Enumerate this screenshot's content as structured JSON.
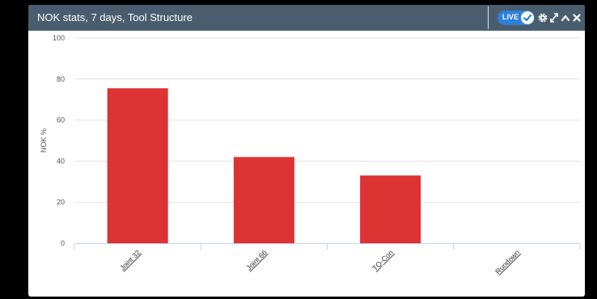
{
  "widget": {
    "title": "NOK stats, 7 days, Tool Structure",
    "live_label": "LIVE",
    "icons": [
      "check-icon",
      "gear-icon",
      "expand-icon",
      "chevron-up-icon",
      "close-icon"
    ]
  },
  "colors": {
    "header": "#4a5d6e",
    "bar": "#dd3333",
    "toggle": "#2f80d8"
  },
  "chart_data": {
    "type": "bar",
    "categories": [
      "Joint 32",
      "Joint 66",
      "TQ-Con",
      "Rundown"
    ],
    "values": [
      75.5,
      42,
      33,
      0
    ],
    "xlabel": "",
    "ylabel": "NOK %",
    "ylim": [
      0,
      100
    ],
    "yticks": [
      0,
      20,
      40,
      60,
      80,
      100
    ],
    "grid": true,
    "legend": "none"
  }
}
